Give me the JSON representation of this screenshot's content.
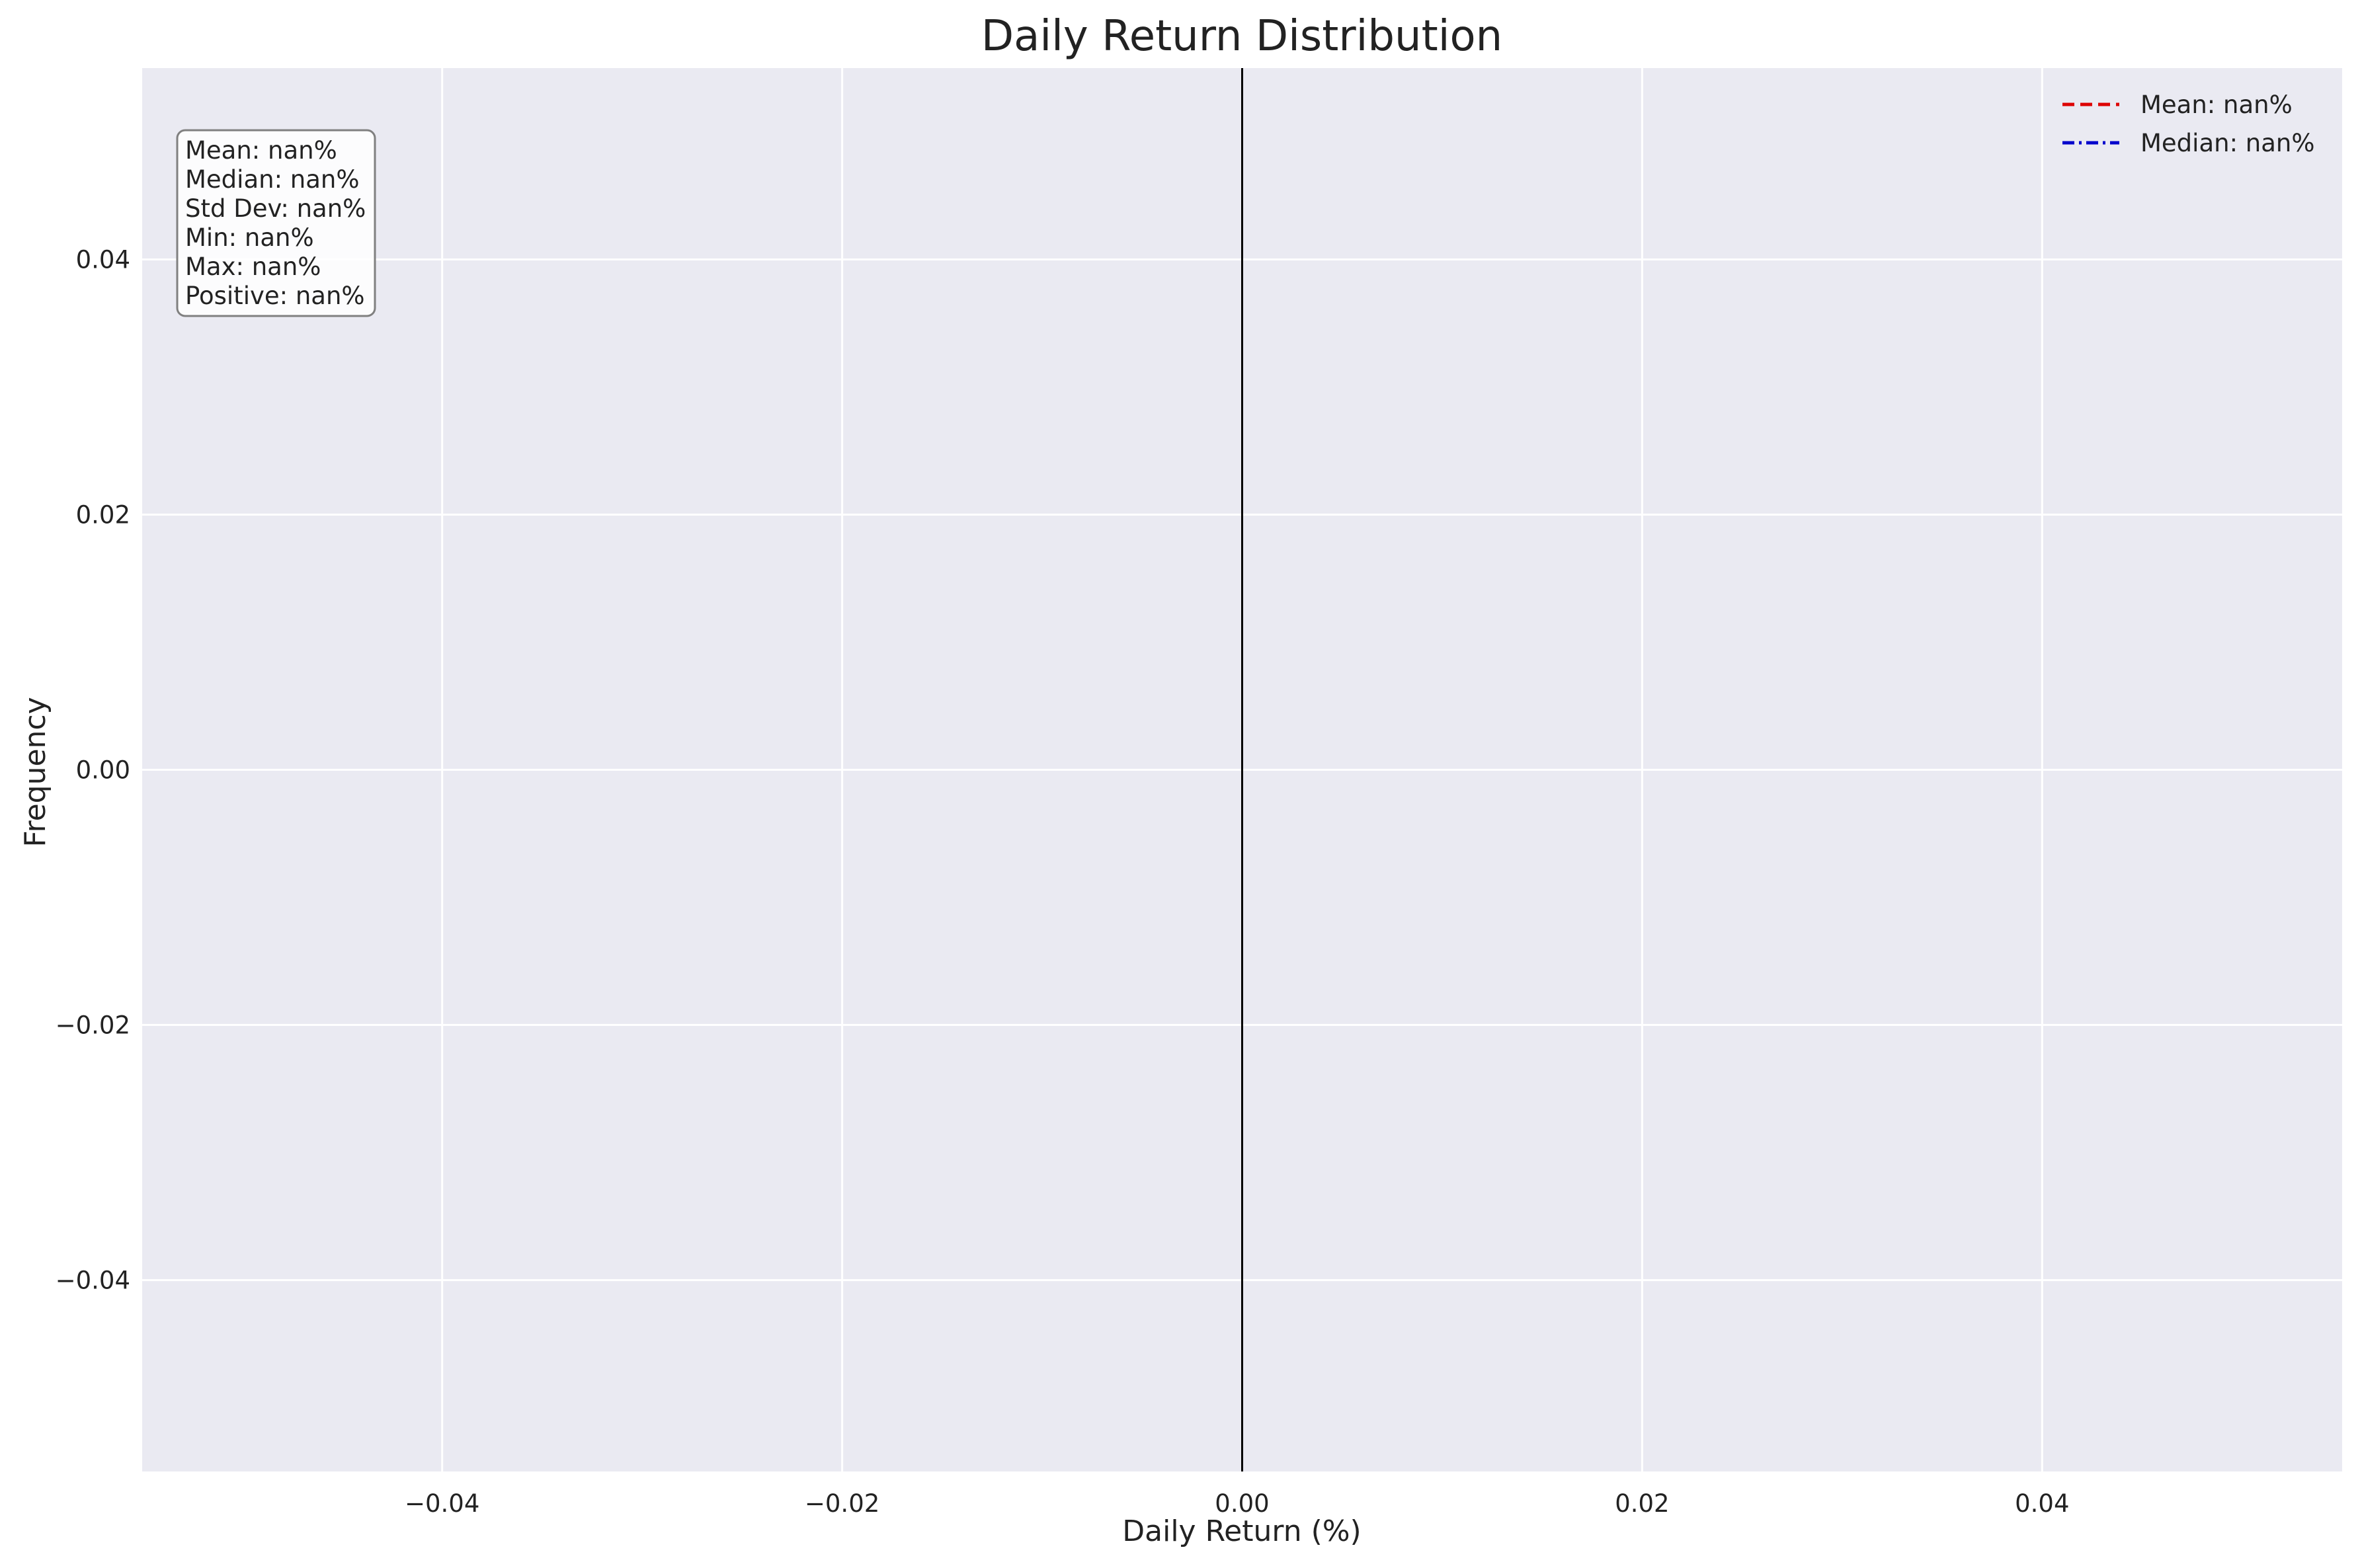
{
  "chart_data": {
    "type": "histogram",
    "title": "Daily Return Distribution",
    "xlabel": "Daily Return (%)",
    "ylabel": "Frequency",
    "xlim": [
      -0.055,
      0.055
    ],
    "ylim": [
      -0.055,
      0.055
    ],
    "xticks": [
      -0.04,
      -0.02,
      0.0,
      0.02,
      0.04
    ],
    "xtick_labels": [
      "−0.04",
      "−0.02",
      "0.00",
      "0.02",
      "0.04"
    ],
    "yticks": [
      0.04,
      0.02,
      0.0,
      -0.02,
      -0.04
    ],
    "ytick_labels": [
      "0.04",
      "0.02",
      "0.00",
      "−0.02",
      "−0.04"
    ],
    "grid": true,
    "background": "#eaeaf2",
    "zero_line": {
      "x": 0.0,
      "color": "#000000"
    },
    "series": [],
    "legend": {
      "placement": "top-right",
      "entries": [
        {
          "label": "Mean: nan%",
          "color": "#dd0000",
          "style": "dashed"
        },
        {
          "label": "Median: nan%",
          "color": "#0000cc",
          "style": "dashdot"
        }
      ]
    },
    "stats_box": {
      "placement": "top-left",
      "lines": [
        "Mean: nan%",
        "Median: nan%",
        "Std Dev: nan%",
        "Min: nan%",
        "Max: nan%",
        "Positive: nan%"
      ]
    }
  }
}
